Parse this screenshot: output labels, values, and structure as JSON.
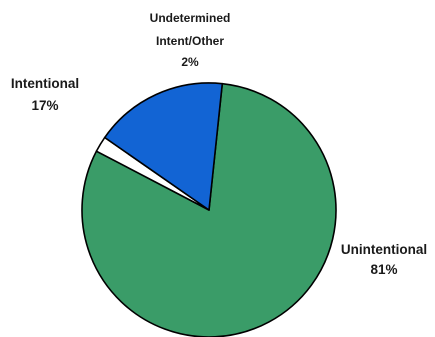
{
  "chart_data": {
    "type": "pie",
    "title": "",
    "slices": [
      {
        "label": "Unintentional",
        "value_label": "81%",
        "value": 81,
        "color": "#3a9c68"
      },
      {
        "label": "Undetermined Intent/Other",
        "value_label": "2%",
        "value": 2,
        "color": "#ffffff"
      },
      {
        "label": "Intentional",
        "value_label": "17%",
        "value": 17,
        "color": "#1264d4"
      }
    ],
    "legend": "none",
    "label_placement": "outside"
  },
  "labels": {
    "unintentional_name": "Unintentional",
    "unintentional_pct": "81%",
    "undetermined_line1": "Undetermined",
    "undetermined_line2": "Intent/Other",
    "undetermined_pct": "2%",
    "intentional_name": "Intentional",
    "intentional_pct": "17%"
  }
}
